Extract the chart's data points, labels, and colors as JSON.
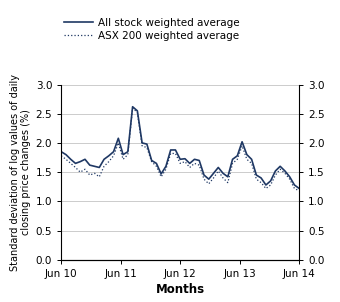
{
  "title": "",
  "xlabel": "Months",
  "ylabel": "Standard deviation of log values of daily\nclosing price changes (%)",
  "legend_labels": [
    "All stock weighted average",
    "ASX 200 weighted average"
  ],
  "x_tick_labels": [
    "Jun 10",
    "Jun 11",
    "Jun 12",
    "Jun 13",
    "Jun 14"
  ],
  "ylim": [
    0,
    3.0
  ],
  "yticks": [
    0.0,
    0.5,
    1.0,
    1.5,
    2.0,
    2.5,
    3.0
  ],
  "line_color": "#1F3864",
  "background_color": "#ffffff",
  "grid_color": "#cccccc",
  "all_stock": [
    1.85,
    1.8,
    1.72,
    1.65,
    1.68,
    1.72,
    1.62,
    1.6,
    1.58,
    1.72,
    1.78,
    1.85,
    2.08,
    1.8,
    1.85,
    2.62,
    2.55,
    2.0,
    1.98,
    1.7,
    1.65,
    1.47,
    1.6,
    1.88,
    1.88,
    1.72,
    1.73,
    1.65,
    1.72,
    1.7,
    1.45,
    1.38,
    1.48,
    1.58,
    1.48,
    1.42,
    1.72,
    1.78,
    2.02,
    1.8,
    1.72,
    1.45,
    1.4,
    1.28,
    1.35,
    1.52,
    1.6,
    1.52,
    1.42,
    1.28,
    1.22
  ],
  "asx200": [
    1.78,
    1.72,
    1.65,
    1.58,
    1.5,
    1.55,
    1.45,
    1.48,
    1.42,
    1.6,
    1.68,
    1.78,
    2.0,
    1.72,
    1.8,
    2.6,
    2.52,
    1.95,
    1.92,
    1.68,
    1.6,
    1.42,
    1.55,
    1.82,
    1.82,
    1.65,
    1.68,
    1.58,
    1.65,
    1.62,
    1.38,
    1.3,
    1.4,
    1.52,
    1.4,
    1.32,
    1.65,
    1.72,
    1.95,
    1.72,
    1.65,
    1.38,
    1.32,
    1.22,
    1.28,
    1.45,
    1.55,
    1.48,
    1.38,
    1.22,
    1.18
  ]
}
